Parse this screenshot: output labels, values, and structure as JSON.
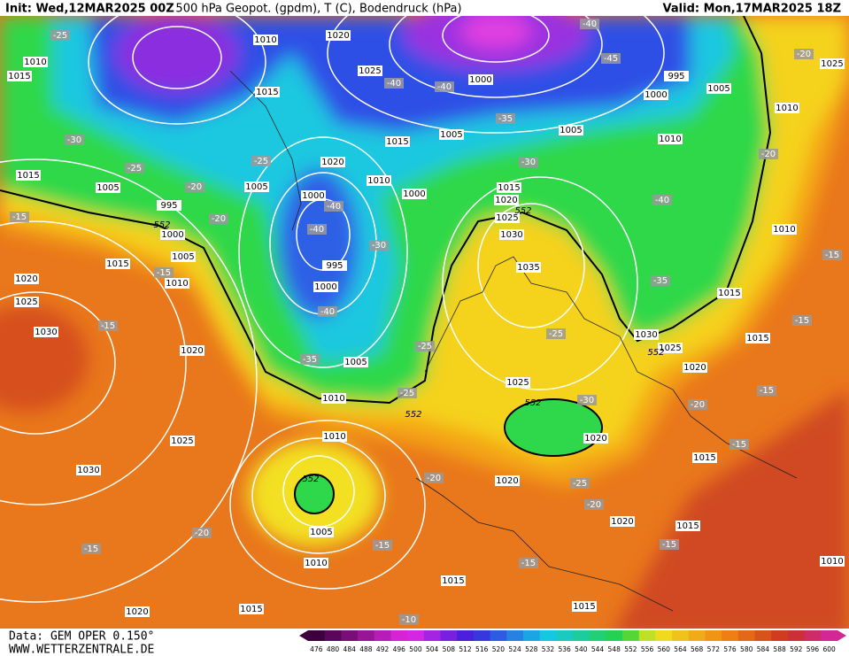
{
  "header": {
    "init": "Init: Wed,12MAR2025 00Z",
    "product": "500 hPa Geopot. (gpdm), T (C), Bodendruck (hPa)",
    "valid": "Valid: Mon,17MAR2025 18Z"
  },
  "footer": {
    "data_source": "Data: GEM OPER 0.150°",
    "website": "WWW.WETTERZENTRALE.DE"
  },
  "map": {
    "isobar_labels": [
      1010,
      1020,
      1025,
      1015,
      1000,
      995,
      1000,
      1005,
      1010,
      1005,
      1005,
      1010,
      1015,
      1020,
      1010,
      1005,
      1000,
      1000,
      1015,
      1020,
      1025,
      1030,
      1035,
      995,
      1000,
      1010,
      1015,
      1015,
      1005,
      995,
      1000,
      1005,
      1015,
      1010,
      1020,
      1025,
      1030,
      1020,
      1005,
      1010,
      1025,
      1030,
      1025,
      1020,
      1015,
      1015,
      1010,
      1010,
      1020,
      1025,
      1030,
      1020,
      1005,
      1010,
      1015,
      1020,
      1015,
      1015,
      1015,
      1020,
      1015,
      1010,
      1025
    ],
    "temperature_labels": [
      -25,
      -30,
      -25,
      -20,
      -20,
      -25,
      -40,
      -40,
      -30,
      -40,
      -35,
      -25,
      -25,
      -40,
      -40,
      -35,
      -30,
      -40,
      -45,
      -40,
      -35,
      -25,
      -30,
      -20,
      -15,
      -15,
      -15,
      -20,
      -20,
      -15,
      -15,
      -20,
      -25,
      -20,
      -20,
      -15,
      -15,
      -15,
      -15,
      -10,
      -15,
      -15
    ],
    "geopotential_labels": [
      552,
      552,
      552,
      552,
      552,
      552
    ]
  },
  "colorbar": {
    "ticks": [
      476,
      480,
      484,
      488,
      492,
      496,
      500,
      504,
      508,
      512,
      516,
      520,
      524,
      528,
      532,
      536,
      540,
      544,
      548,
      552,
      556,
      560,
      564,
      568,
      572,
      576,
      580,
      584,
      588,
      592,
      596,
      600
    ]
  }
}
